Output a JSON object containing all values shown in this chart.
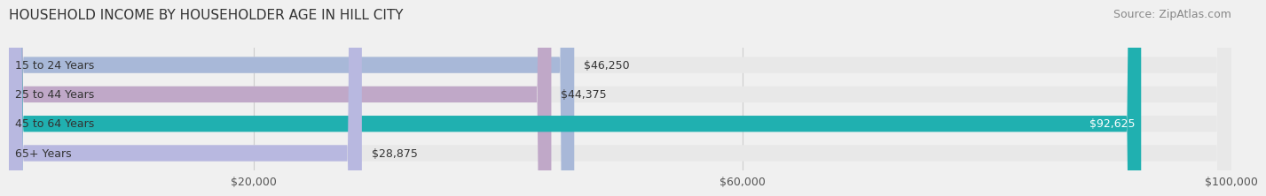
{
  "title": "HOUSEHOLD INCOME BY HOUSEHOLDER AGE IN HILL CITY",
  "source": "Source: ZipAtlas.com",
  "categories": [
    "15 to 24 Years",
    "25 to 44 Years",
    "45 to 64 Years",
    "65+ Years"
  ],
  "values": [
    46250,
    44375,
    92625,
    28875
  ],
  "bar_colors": [
    "#a8b8d8",
    "#c0a8c8",
    "#20b0b0",
    "#b8b8e0"
  ],
  "bar_labels": [
    "$46,250",
    "$44,375",
    "$92,625",
    "$28,875"
  ],
  "label_inside": [
    false,
    false,
    true,
    false
  ],
  "xlim": [
    0,
    100000
  ],
  "xticks": [
    20000,
    60000,
    100000
  ],
  "xticklabels": [
    "$20,000",
    "$60,000",
    "$100,000"
  ],
  "background_color": "#f0f0f0",
  "bar_bg_color": "#e8e8e8",
  "title_fontsize": 11,
  "source_fontsize": 9,
  "label_fontsize": 9,
  "tick_fontsize": 9,
  "bar_height": 0.55
}
